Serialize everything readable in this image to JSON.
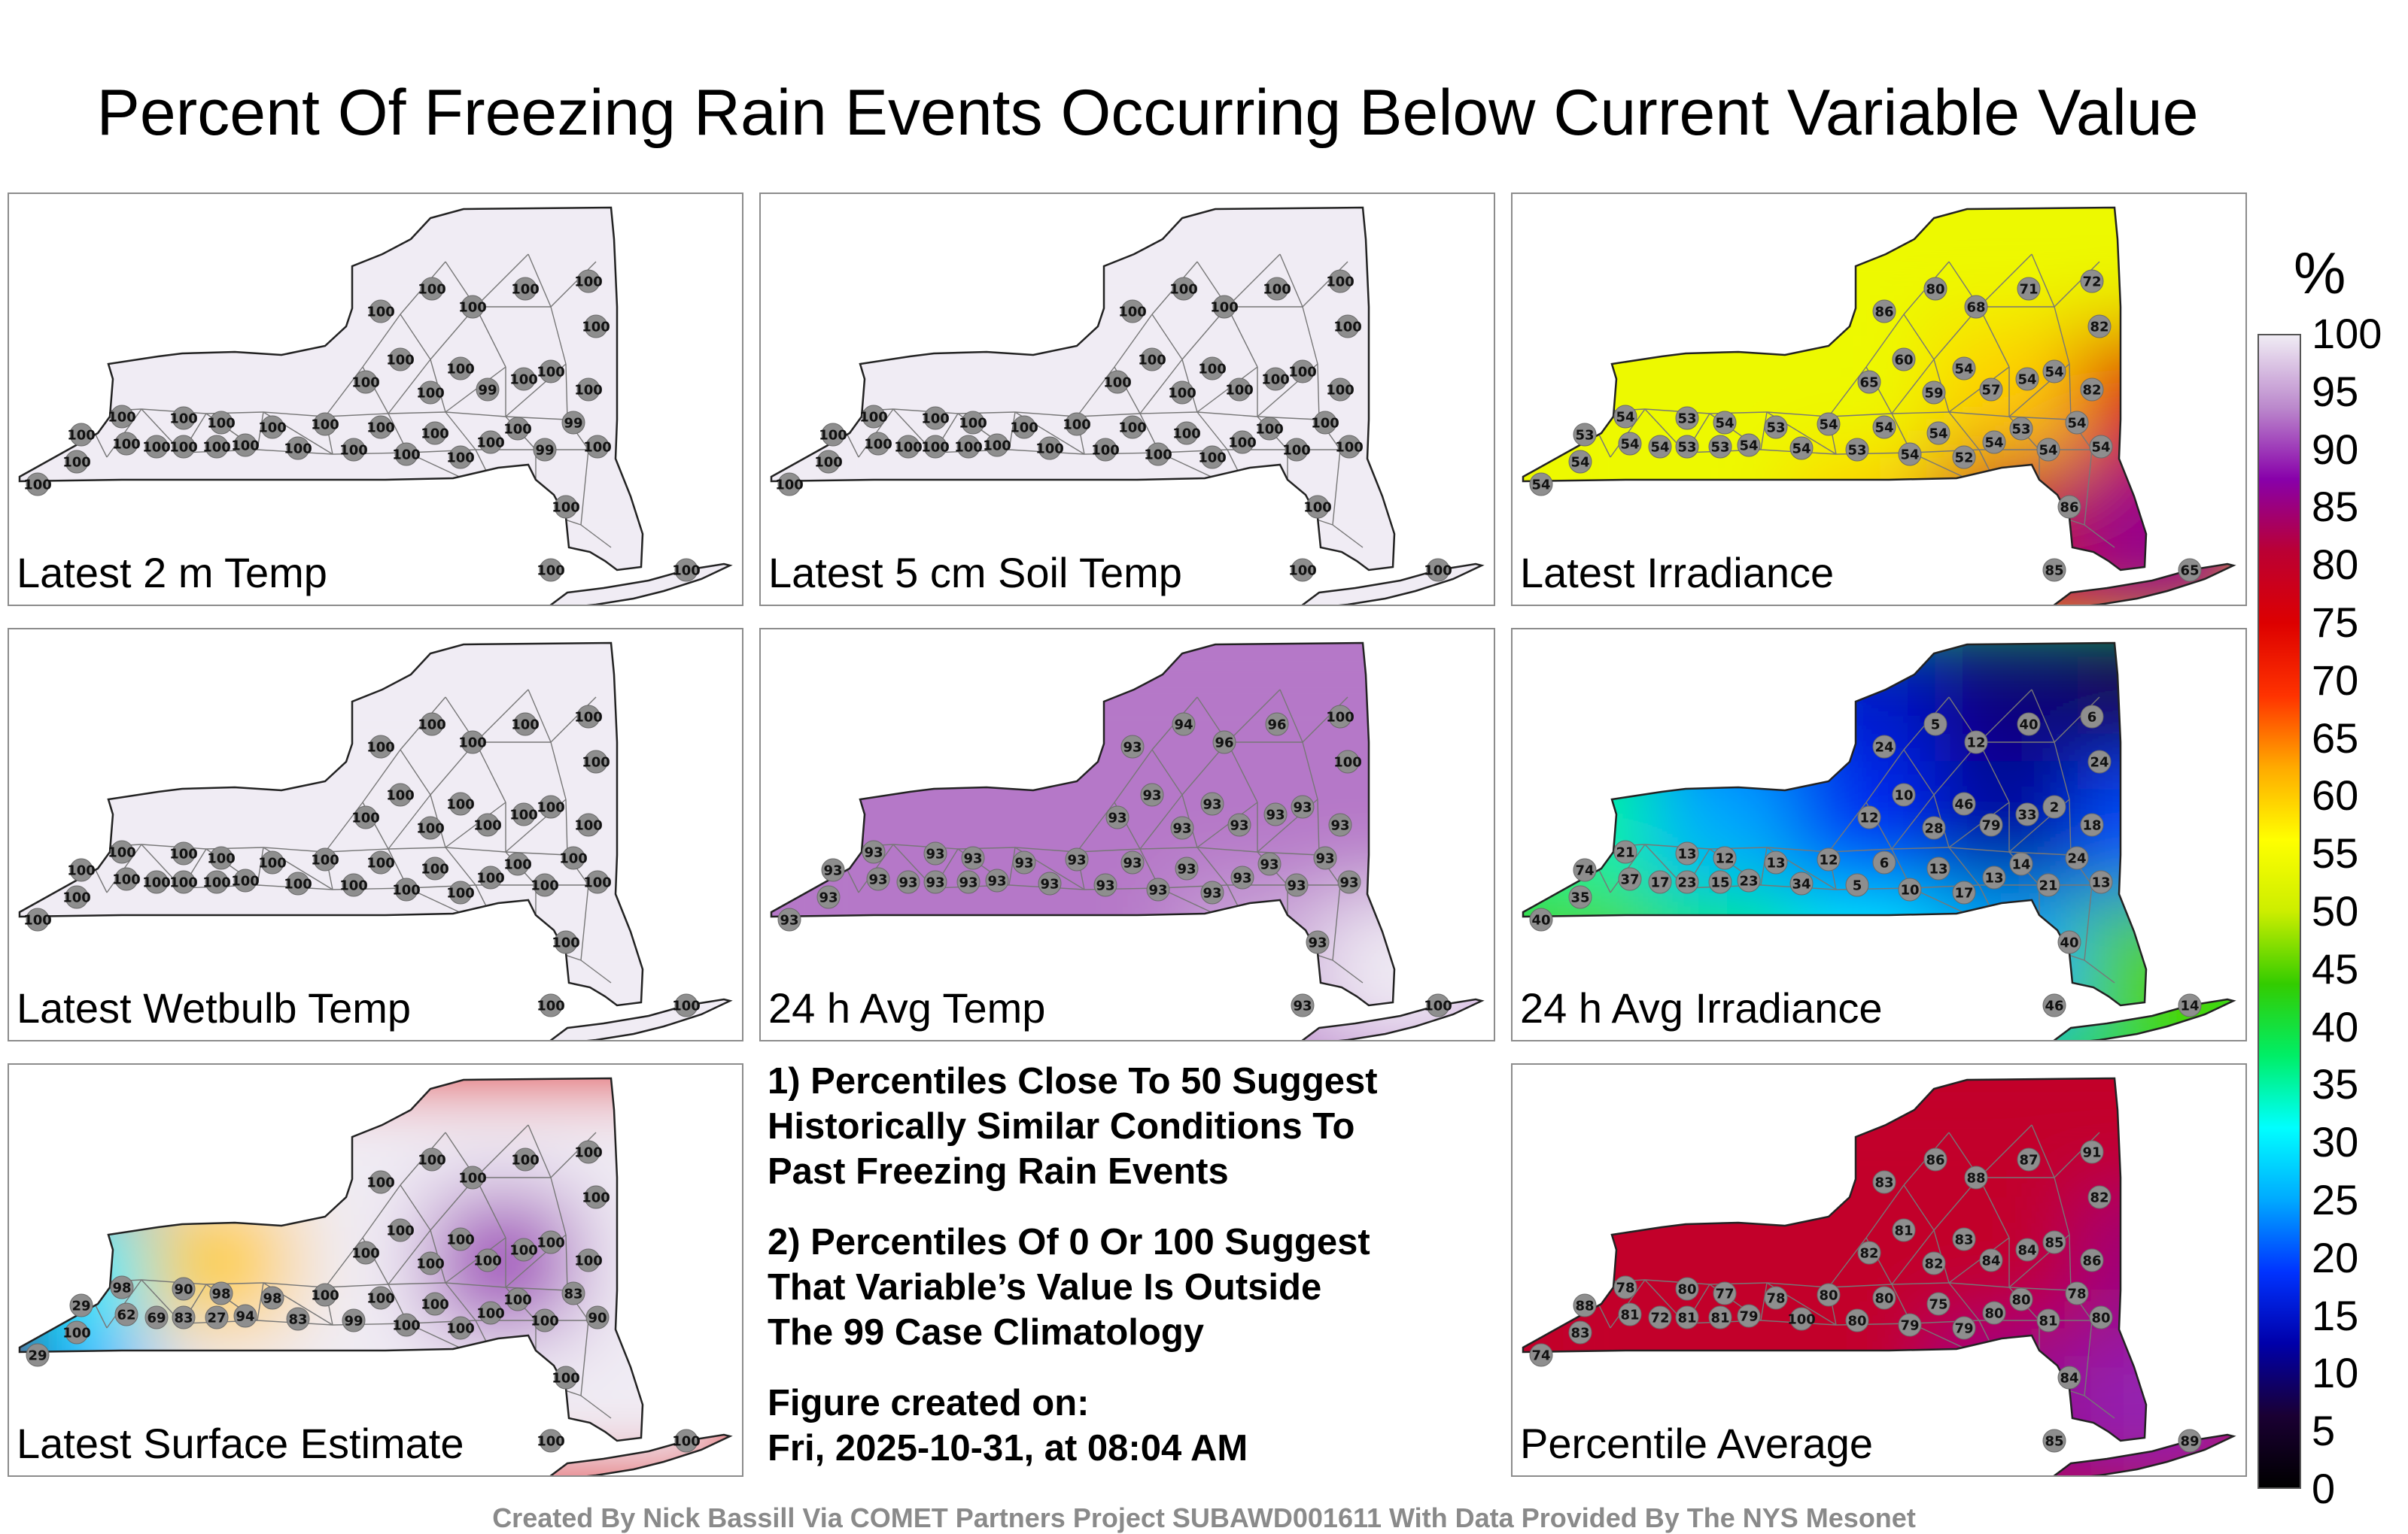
{
  "title": "Percent Of Freezing Rain Events Occurring Below Current Variable Value",
  "colors": {
    "palette": [
      "#000000",
      "#1a0033",
      "#0000aa",
      "#0033ff",
      "#00aaff",
      "#00ffff",
      "#00ee66",
      "#33cc00",
      "#ccee00",
      "#ffff00",
      "#ffaa00",
      "#ff3300",
      "#dd0000",
      "#bb0033",
      "#8800aa",
      "#bb88cc",
      "#f0ecf4"
    ],
    "state_outline": "#222222",
    "county_lines": "#777777",
    "station_fill": "#8e8e8e"
  },
  "panels": [
    {
      "label": "Latest 2 m Temp",
      "field": [
        [
          100,
          100,
          100,
          100,
          100
        ],
        [
          100,
          100,
          100,
          100,
          100
        ],
        [
          100,
          100,
          100,
          100,
          100
        ]
      ],
      "stations": [
        "100",
        "100",
        "100",
        "100",
        "100",
        "100",
        "100",
        "100",
        "100",
        "100",
        "100",
        "100",
        "100",
        "100",
        "100",
        "100",
        "100",
        "100",
        "100",
        "100",
        "100",
        "99",
        "99",
        "100",
        "100",
        "100",
        "100",
        "100",
        "99",
        "100",
        "100",
        "100",
        "100",
        "100",
        "100",
        "100",
        "100",
        "100",
        "100",
        "100",
        "100"
      ]
    },
    {
      "label": "Latest 5 cm Soil Temp",
      "field": [
        [
          100,
          100,
          100,
          100,
          100
        ],
        [
          100,
          100,
          100,
          100,
          100
        ],
        [
          100,
          100,
          100,
          100,
          100
        ]
      ],
      "stations": [
        "100",
        "100",
        "100",
        "100",
        "100",
        "100",
        "100",
        "100",
        "100",
        "100",
        "100",
        "100",
        "100",
        "100",
        "100",
        "100",
        "100",
        "100",
        "100",
        "100",
        "100",
        "100",
        "100",
        "100",
        "100",
        "100",
        "100",
        "100",
        "100",
        "100",
        "100",
        "100",
        "100",
        "100",
        "100",
        "100",
        "100",
        "100",
        "100",
        "100",
        "100"
      ]
    },
    {
      "label": "Latest Irradiance",
      "field": [
        [
          54,
          54,
          54,
          54,
          54
        ],
        [
          54,
          54,
          54,
          60,
          75
        ],
        [
          54,
          54,
          60,
          80,
          86
        ]
      ],
      "stations": [
        "54",
        "54",
        "53",
        "54",
        "54",
        "54",
        "53",
        "53",
        "53",
        "54",
        "54",
        "53",
        "54",
        "54",
        "53",
        "54",
        "54",
        "54",
        "52",
        "54",
        "53",
        "54",
        "54",
        "54",
        "65",
        "60",
        "59",
        "54",
        "57",
        "54",
        "54",
        "82",
        "86",
        "80",
        "68",
        "71",
        "72",
        "82",
        "86",
        "85",
        "65"
      ]
    },
    {
      "label": "Latest Wetbulb Temp",
      "field": [
        [
          100,
          100,
          100,
          100,
          100
        ],
        [
          100,
          100,
          100,
          100,
          100
        ],
        [
          100,
          100,
          100,
          100,
          100
        ]
      ],
      "stations": [
        "100",
        "100",
        "100",
        "100",
        "100",
        "100",
        "100",
        "100",
        "100",
        "100",
        "100",
        "100",
        "100",
        "100",
        "100",
        "100",
        "100",
        "100",
        "100",
        "100",
        "100",
        "100",
        "100",
        "100",
        "100",
        "100",
        "100",
        "100",
        "100",
        "100",
        "100",
        "100",
        "100",
        "100",
        "100",
        "100",
        "100",
        "100",
        "100",
        "100",
        "100"
      ]
    },
    {
      "label": "24 h Avg Temp",
      "field": [
        [
          93,
          93,
          93,
          93,
          93
        ],
        [
          93,
          93,
          93,
          93,
          93
        ],
        [
          93,
          93,
          93,
          96,
          100
        ]
      ],
      "stations": [
        "93",
        "93",
        "93",
        "93",
        "93",
        "93",
        "93",
        "93",
        "93",
        "93",
        "93",
        "93",
        "93",
        "93",
        "93",
        "93",
        "93",
        "93",
        "93",
        "93",
        "93",
        "93",
        "93",
        "93",
        "93",
        "93",
        "93",
        "93",
        "93",
        "93",
        "93",
        "93",
        "93",
        "94",
        "96",
        "96",
        "100",
        "100",
        "93",
        "93",
        "100"
      ]
    },
    {
      "label": "24 h Avg Irradiance",
      "field": [
        [
          40,
          20,
          15,
          10,
          8
        ],
        [
          35,
          25,
          18,
          12,
          20
        ],
        [
          45,
          37,
          30,
          25,
          45
        ]
      ],
      "stations": [
        "40",
        "35",
        "74",
        "21",
        "37",
        "17",
        "23",
        "15",
        "13",
        "12",
        "23",
        "13",
        "34",
        "12",
        "5",
        "6",
        "10",
        "13",
        "17",
        "13",
        "14",
        "21",
        "24",
        "13",
        "12",
        "10",
        "28",
        "46",
        "79",
        "33",
        "2",
        "18",
        "24",
        "5",
        "12",
        "40",
        "6",
        "24",
        "40",
        "46",
        "14"
      ]
    },
    {
      "label": "Latest Surface Estimate",
      "field": [
        [
          75,
          100,
          100,
          100,
          100
        ],
        [
          30,
          60,
          100,
          90,
          100
        ],
        [
          25,
          100,
          100,
          100,
          100
        ]
      ],
      "stations": [
        "29",
        "100",
        "29",
        "98",
        "62",
        "69",
        "83",
        "27",
        "90",
        "98",
        "94",
        "98",
        "83",
        "100",
        "99",
        "100",
        "100",
        "100",
        "100",
        "100",
        "100",
        "100",
        "83",
        "90",
        "100",
        "100",
        "100",
        "100",
        "100",
        "100",
        "100",
        "100",
        "100",
        "100",
        "100",
        "100",
        "100",
        "100",
        "100",
        "100",
        "100"
      ]
    },
    {
      "label": "Percentile Average",
      "field": [
        [
          80,
          80,
          80,
          80,
          80
        ],
        [
          80,
          80,
          80,
          80,
          85
        ],
        [
          80,
          80,
          80,
          86,
          89
        ]
      ],
      "stations": [
        "74",
        "83",
        "88",
        "78",
        "81",
        "72",
        "81",
        "81",
        "80",
        "77",
        "79",
        "78",
        "100",
        "80",
        "80",
        "80",
        "79",
        "75",
        "79",
        "80",
        "80",
        "81",
        "78",
        "80",
        "82",
        "81",
        "82",
        "83",
        "84",
        "84",
        "85",
        "86",
        "83",
        "86",
        "88",
        "87",
        "91",
        "82",
        "84",
        "85",
        "89"
      ]
    }
  ],
  "notes": [
    {
      "line1": "1) Percentiles Close To 50 Suggest",
      "line2": "Historically Similar Conditions To",
      "line3": "Past Freezing Rain Events"
    },
    {
      "line1": "2) Percentiles Of 0 Or 100 Suggest",
      "line2": "That Variable’s Value Is Outside",
      "line3": "The 99 Case Climatology"
    }
  ],
  "figure_created": {
    "label": "Figure created on:",
    "value": "Fri, 2025-10-31, at 08:04 AM"
  },
  "credit": "Created By Nick Bassill Via COMET Partners Project SUBAWD001611 With Data Provided By The NYS Mesonet",
  "colorbar": {
    "unit": "%",
    "ticks": [
      "0",
      "5",
      "10",
      "15",
      "20",
      "25",
      "30",
      "35",
      "40",
      "45",
      "50",
      "55",
      "60",
      "65",
      "70",
      "75",
      "80",
      "85",
      "90",
      "95",
      "100"
    ]
  }
}
